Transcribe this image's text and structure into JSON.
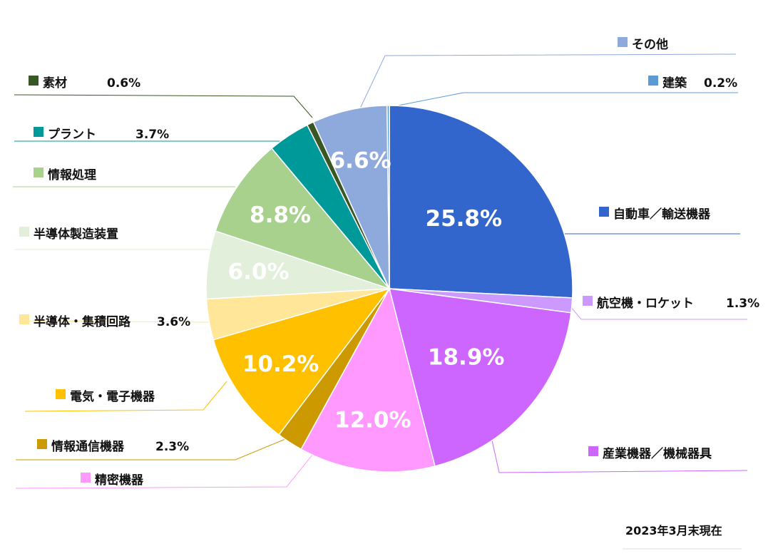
{
  "chart_data": {
    "type": "pie",
    "note": "2023年3月末現在",
    "slices": [
      {
        "name": "自動車／輸送機器",
        "value": 25.8,
        "label": "25.8%",
        "color": "#3366CC"
      },
      {
        "name": "航空機・ロケット",
        "value": 1.3,
        "label": "1.3%",
        "color": "#CC99FF"
      },
      {
        "name": "産業機器／機械器具",
        "value": 18.9,
        "label": "18.9%",
        "color": "#CC66FF"
      },
      {
        "name": "精密機器",
        "value": 12.0,
        "label": "12.0%",
        "color": "#FF99FF"
      },
      {
        "name": "情報通信機器",
        "value": 2.3,
        "label": "2.3%",
        "color": "#CC9900"
      },
      {
        "name": "電気・電子機器",
        "value": 10.2,
        "label": "10.2%",
        "color": "#FFC000"
      },
      {
        "name": "半導体・集積回路",
        "value": 3.6,
        "label": "3.6%",
        "color": "#FFE699"
      },
      {
        "name": "半導体製造装置",
        "value": 6.0,
        "label": "6.0%",
        "color": "#E2EFDA"
      },
      {
        "name": "情報処理",
        "value": 8.8,
        "label": "8.8%",
        "color": "#A9D18E"
      },
      {
        "name": "プラント",
        "value": 3.7,
        "label": "3.7%",
        "color": "#009999"
      },
      {
        "name": "素材",
        "value": 0.6,
        "label": "0.6%",
        "color": "#385723"
      },
      {
        "name": "その他",
        "value": 6.6,
        "label": "6.6%",
        "color": "#8EA9DB"
      },
      {
        "name": "建築",
        "value": 0.2,
        "label": "0.2%",
        "color": "#5B9BD5"
      }
    ]
  }
}
